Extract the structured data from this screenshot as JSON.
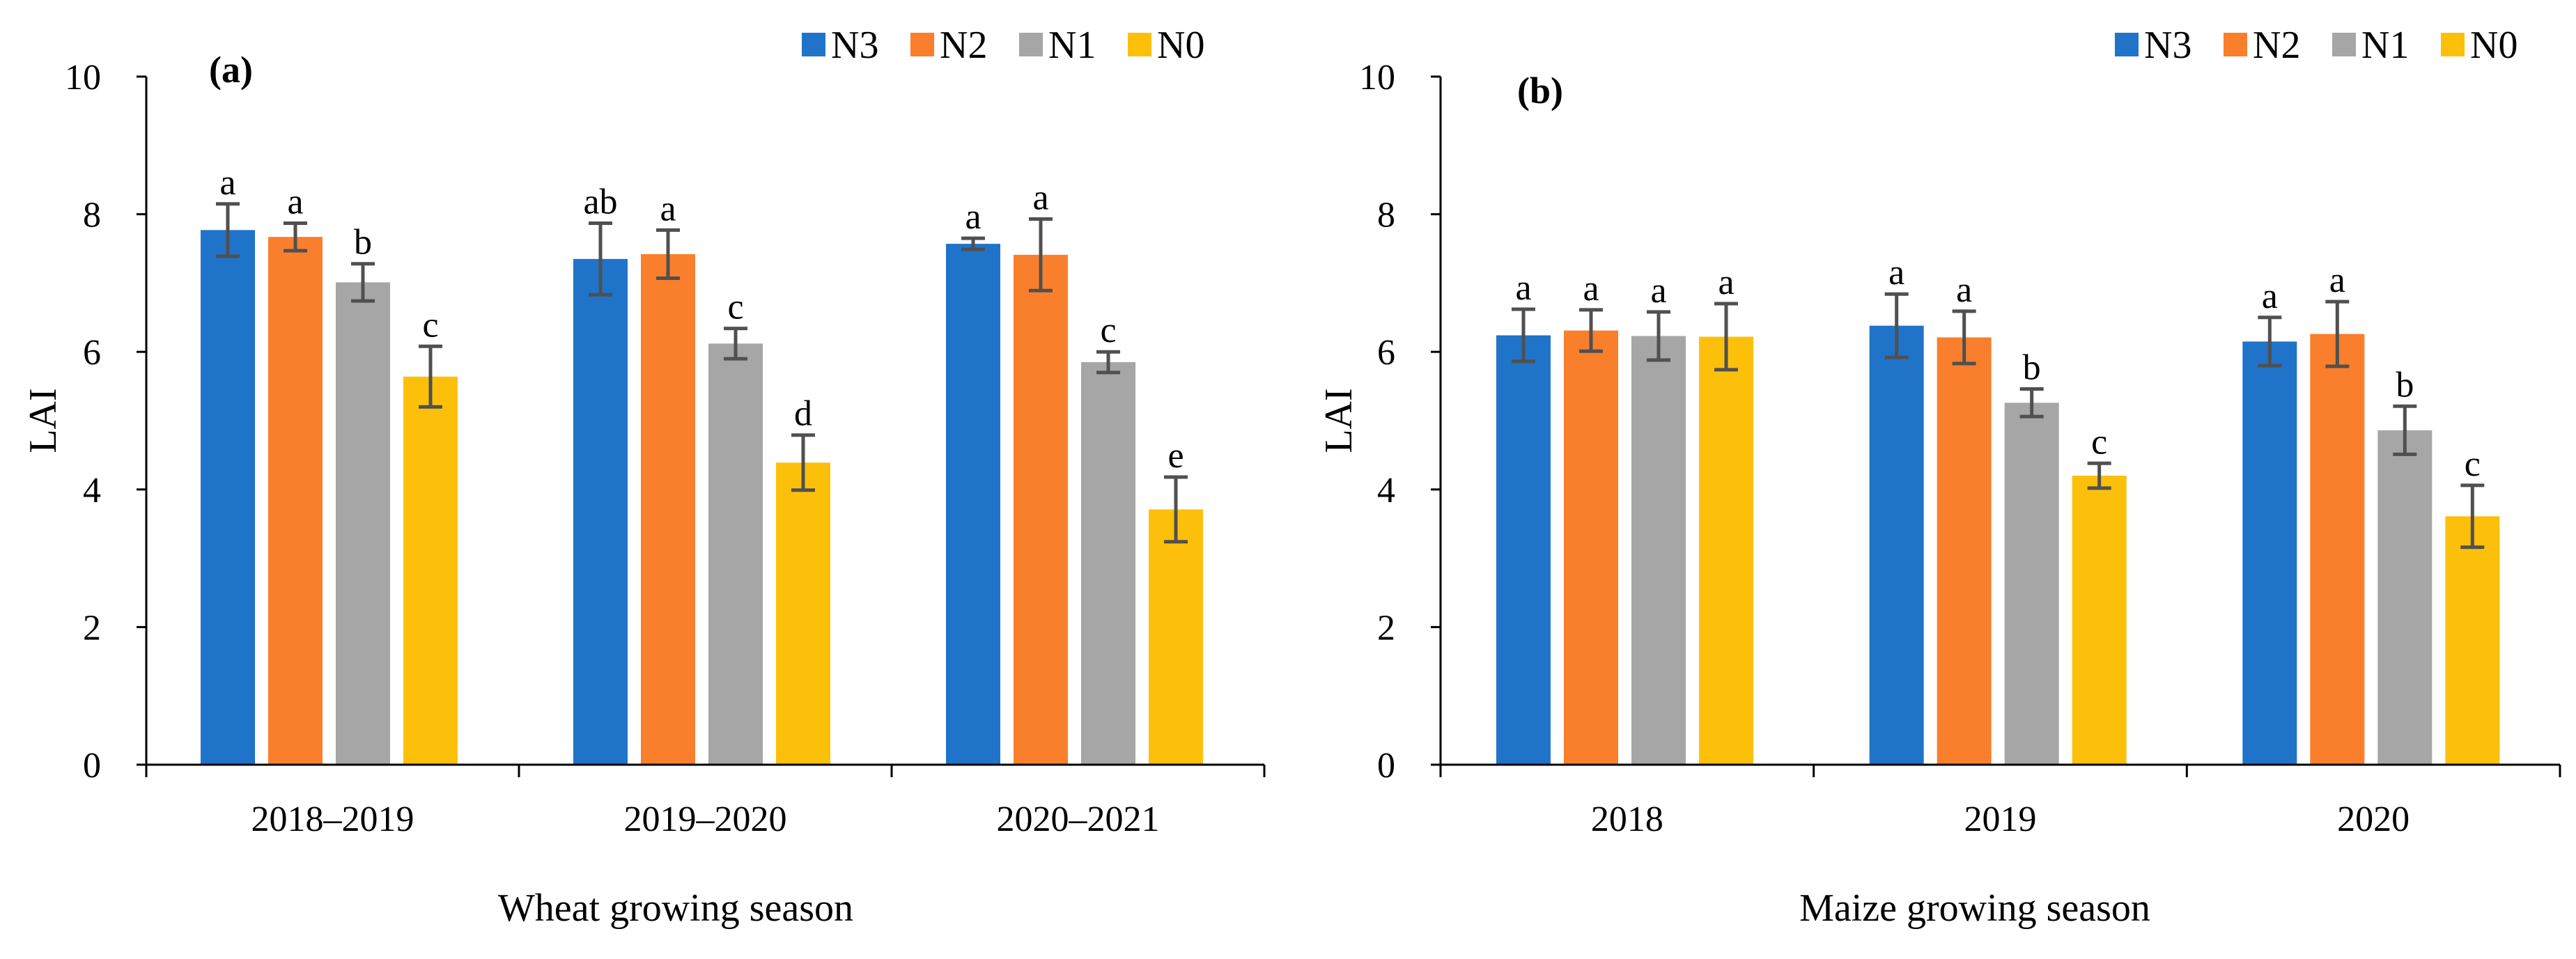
{
  "colors": {
    "N3": "#1f74c9",
    "N2": "#f97f2c",
    "N1": "#a6a6a6",
    "N0": "#fdc00a",
    "error_bar": "#505050",
    "axis": "#000000"
  },
  "chart_data": [
    {
      "type": "bar",
      "panel_label": "(a)",
      "xlabel": "Wheat growing season",
      "ylabel": "LAI",
      "ylim": [
        0,
        10
      ],
      "yticks": [
        0,
        2,
        4,
        6,
        8,
        10
      ],
      "grid": false,
      "legend_position": "top-right",
      "categories": [
        "2018–2019",
        "2019–2020",
        "2020–2021"
      ],
      "series": [
        {
          "name": "N3",
          "values": [
            7.77,
            7.35,
            7.57
          ],
          "errors": [
            0.38,
            0.52,
            0.08
          ],
          "letters": [
            "a",
            "ab",
            "a"
          ]
        },
        {
          "name": "N2",
          "values": [
            7.67,
            7.42,
            7.41
          ],
          "errors": [
            0.2,
            0.35,
            0.52
          ],
          "letters": [
            "a",
            "a",
            "a"
          ]
        },
        {
          "name": "N1",
          "values": [
            7.01,
            6.12,
            5.85
          ],
          "errors": [
            0.27,
            0.22,
            0.15
          ],
          "letters": [
            "b",
            "c",
            "c"
          ]
        },
        {
          "name": "N0",
          "values": [
            5.64,
            4.39,
            3.71
          ],
          "errors": [
            0.44,
            0.4,
            0.47
          ],
          "letters": [
            "c",
            "d",
            "e"
          ]
        }
      ]
    },
    {
      "type": "bar",
      "panel_label": "(b)",
      "xlabel": "Maize growing season",
      "ylabel": "LAI",
      "ylim": [
        0,
        10
      ],
      "yticks": [
        0,
        2,
        4,
        6,
        8,
        10
      ],
      "grid": false,
      "legend_position": "top-right",
      "categories": [
        "2018",
        "2019",
        "2020"
      ],
      "series": [
        {
          "name": "N3",
          "values": [
            6.24,
            6.38,
            6.15
          ],
          "errors": [
            0.38,
            0.46,
            0.35
          ],
          "letters": [
            "a",
            "a",
            "a"
          ]
        },
        {
          "name": "N2",
          "values": [
            6.31,
            6.21,
            6.26
          ],
          "errors": [
            0.3,
            0.38,
            0.47
          ],
          "letters": [
            "a",
            "a",
            "a"
          ]
        },
        {
          "name": "N1",
          "values": [
            6.23,
            5.26,
            4.86
          ],
          "errors": [
            0.35,
            0.2,
            0.35
          ],
          "letters": [
            "a",
            "b",
            "b"
          ]
        },
        {
          "name": "N0",
          "values": [
            6.22,
            4.2,
            3.61
          ],
          "errors": [
            0.48,
            0.18,
            0.45
          ],
          "letters": [
            "a",
            "c",
            "c"
          ]
        }
      ]
    }
  ]
}
